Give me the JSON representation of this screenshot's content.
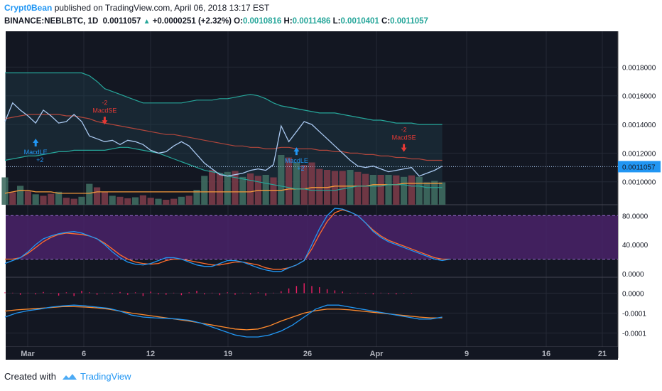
{
  "header": {
    "author": "Crypt0Bean",
    "published": "published on TradingView.com, April 06, 2018 13:17 EST",
    "symbol": "BINANCE:NEBLBTC, 1D",
    "last": "0.0011057",
    "change": "+0.0000251 (+2.32%)",
    "o_label": "O:",
    "o_value": "0.0010816",
    "h_label": "H:",
    "h_value": "0.0011486",
    "l_label": "L:",
    "l_value": "0.0010401",
    "c_label": "C:",
    "c_value": "0.0011057"
  },
  "footer": {
    "created_with": "Created with",
    "brand": "TradingView"
  },
  "colors": {
    "background": "#131722",
    "price_line": "#a9c8f0",
    "upper_band": "#26a69a",
    "lower_band": "#26a69a",
    "mid_band": "#b0463c",
    "ema": "#f59a3b",
    "vol_up": "#3f6b60",
    "vol_down": "#7a3b48",
    "stoch_k": "#2196f3",
    "stoch_d": "#ff6d2d",
    "macd_line": "#2196f3",
    "signal_line": "#ff8a2d",
    "hist": "#e91e63",
    "signal_long": "#2196f3",
    "signal_short": "#e53935",
    "rsi_band": "#4a2268"
  },
  "chart_data": [
    {
      "type": "line",
      "panel": "price",
      "x_ticks": [
        "Mar",
        "6",
        "12",
        "19",
        "26",
        "Apr",
        "9",
        "16",
        "21"
      ],
      "y_ticks": [
        "0.0018000",
        "0.0016000",
        "0.0014000",
        "0.0012000",
        "0.0010000"
      ],
      "ylim": [
        0.00084,
        0.00205
      ],
      "current_price_label": "0.0011057",
      "current_price": 0.0011057,
      "series": [
        {
          "values": [
            0.00142,
            0.00155,
            0.0015,
            0.00146,
            0.00141,
            0.0015,
            0.00146,
            0.00141,
            0.00142,
            0.00147,
            0.00142,
            0.00132,
            0.0013,
            0.00128,
            0.00129,
            0.00126,
            0.00129,
            0.00128,
            0.00126,
            0.00122,
            0.0012,
            0.00121,
            0.00125,
            0.00128,
            0.00125,
            0.00119,
            0.00113,
            0.00109,
            0.00105,
            0.00104,
            0.00105,
            0.00106,
            0.00108,
            0.00109,
            0.00108,
            0.00112,
            0.00139,
            0.00128,
            0.00135,
            0.00142,
            0.0014,
            0.00135,
            0.0013,
            0.00125,
            0.0012,
            0.00115,
            0.00111,
            0.0011,
            0.00111,
            0.00109,
            0.00107,
            0.00108,
            0.00109,
            0.0011,
            0.00104,
            0.00106,
            0.00108,
            0.00111
          ]
        },
        {
          "values": [
            0.00176,
            0.00176,
            0.00176,
            0.00176,
            0.00176,
            0.00176,
            0.00176,
            0.00176,
            0.00176,
            0.00176,
            0.00176,
            0.00174,
            0.0017,
            0.00165,
            0.00163,
            0.00161,
            0.00159,
            0.00157,
            0.00155,
            0.00155,
            0.00155,
            0.00155,
            0.00155,
            0.00155,
            0.00156,
            0.00157,
            0.00157,
            0.00157,
            0.00158,
            0.00158,
            0.00159,
            0.0016,
            0.00161,
            0.0016,
            0.00158,
            0.00155,
            0.00153,
            0.00152,
            0.00151,
            0.0015,
            0.00149,
            0.00148,
            0.00148,
            0.00148,
            0.00147,
            0.00146,
            0.00145,
            0.00144,
            0.00143,
            0.00143,
            0.00142,
            0.00141,
            0.00141,
            0.00141,
            0.0014,
            0.0014,
            0.0014,
            0.0014
          ]
        },
        {
          "values": [
            0.00144,
            0.00145,
            0.00146,
            0.00147,
            0.00147,
            0.00147,
            0.00147,
            0.00147,
            0.00146,
            0.00146,
            0.00145,
            0.00144,
            0.00142,
            0.00141,
            0.0014,
            0.00139,
            0.00138,
            0.00137,
            0.00136,
            0.00135,
            0.00134,
            0.00133,
            0.00133,
            0.00132,
            0.00131,
            0.0013,
            0.00129,
            0.00128,
            0.00127,
            0.00126,
            0.00125,
            0.00125,
            0.00124,
            0.00124,
            0.00123,
            0.00123,
            0.00124,
            0.00124,
            0.00123,
            0.00123,
            0.00123,
            0.00122,
            0.00122,
            0.00121,
            0.00121,
            0.0012,
            0.0012,
            0.00119,
            0.00119,
            0.00118,
            0.00118,
            0.00117,
            0.00117,
            0.00116,
            0.00116,
            0.00115,
            0.00115,
            0.00115
          ]
        },
        {
          "values": [
            0.00115,
            0.00116,
            0.00117,
            0.00118,
            0.00118,
            0.00119,
            0.0012,
            0.00121,
            0.00121,
            0.00122,
            0.00122,
            0.00122,
            0.00122,
            0.00122,
            0.00123,
            0.00124,
            0.00124,
            0.00123,
            0.00122,
            0.00121,
            0.0012,
            0.00118,
            0.00116,
            0.00114,
            0.00112,
            0.0011,
            0.00108,
            0.00107,
            0.00106,
            0.00104,
            0.00103,
            0.00102,
            0.00101,
            0.001,
            0.00099,
            0.00098,
            0.00097,
            0.00096,
            0.00095,
            0.00095,
            0.00094,
            0.00094,
            0.00094,
            0.00094,
            0.00095,
            0.00096,
            0.00097,
            0.00097,
            0.00097,
            0.00097,
            0.00098,
            0.00098,
            0.00098,
            0.00097,
            0.00097,
            0.00096,
            0.00096,
            0.00096
          ]
        },
        {
          "values": [
            0.00092,
            0.00093,
            0.00094,
            0.00094,
            0.00093,
            0.00093,
            0.00093,
            0.00092,
            0.00092,
            0.00092,
            0.00092,
            0.00092,
            0.00093,
            0.00093,
            0.00093,
            0.00093,
            0.00093,
            0.00093,
            0.00093,
            0.00093,
            0.00093,
            0.00093,
            0.00093,
            0.00093,
            0.00093,
            0.00093,
            0.00093,
            0.00093,
            0.00093,
            0.00093,
            0.00093,
            0.00093,
            0.00093,
            0.00094,
            0.00094,
            0.00094,
            0.00094,
            0.00095,
            0.00095,
            0.00095,
            0.00096,
            0.00096,
            0.00096,
            0.00097,
            0.00097,
            0.00097,
            0.00097,
            0.00097,
            0.00098,
            0.00098,
            0.00098,
            0.00098,
            0.00099,
            0.00099,
            0.00099,
            0.00099,
            0.00099,
            0.00099
          ]
        }
      ],
      "volume": [
        0.55,
        0.25,
        0.38,
        0.27,
        0.21,
        0.18,
        0.22,
        0.26,
        0.14,
        0.12,
        0.16,
        0.42,
        0.35,
        0.26,
        0.18,
        0.16,
        0.13,
        0.15,
        0.19,
        0.14,
        0.12,
        0.1,
        0.12,
        0.16,
        0.18,
        0.3,
        0.58,
        0.7,
        0.64,
        0.66,
        0.68,
        0.56,
        0.63,
        0.58,
        0.6,
        0.55,
        1.0,
        0.95,
        0.85,
        0.8,
        0.85,
        0.72,
        0.7,
        0.68,
        0.68,
        0.7,
        0.66,
        0.62,
        0.6,
        0.6,
        0.6,
        0.59,
        0.56,
        0.59,
        0.56,
        0.45,
        0.48,
        0.45
      ],
      "volume_up": [
        true,
        false,
        true,
        false,
        true,
        false,
        false,
        true,
        false,
        false,
        true,
        true,
        false,
        false,
        true,
        false,
        false,
        true,
        false,
        false,
        true,
        false,
        false,
        true,
        false,
        true,
        true,
        false,
        false,
        true,
        false,
        true,
        false,
        false,
        true,
        false,
        true,
        false,
        true,
        false,
        false,
        false,
        false,
        false,
        false,
        true,
        false,
        false,
        true,
        false,
        true,
        false,
        true,
        false,
        true,
        true,
        true,
        true
      ],
      "signals": [
        {
          "label": "MacdLE",
          "sub": "+2",
          "index": 4,
          "kind": "long"
        },
        {
          "label": "MacdSE",
          "sub": "-2",
          "index": 13,
          "kind": "short"
        },
        {
          "label": "MacdLE",
          "sub": "+2",
          "index": 38,
          "kind": "long"
        },
        {
          "label": "MacdSE",
          "sub": "-2",
          "index": 52,
          "kind": "short"
        }
      ]
    },
    {
      "type": "line",
      "panel": "stochastic_rsi",
      "y_ticks": [
        "80.0000",
        "40.0000",
        "0.0000"
      ],
      "ylim": [
        -5,
        95
      ],
      "series": [
        {
          "values": [
            14,
            18,
            22,
            30,
            40,
            48,
            52,
            55,
            57,
            58,
            56,
            52,
            48,
            40,
            30,
            22,
            16,
            13,
            12,
            14,
            18,
            22,
            22,
            20,
            16,
            12,
            10,
            10,
            14,
            18,
            18,
            16,
            12,
            8,
            5,
            3,
            3,
            8,
            12,
            18,
            40,
            62,
            80,
            90,
            89,
            85,
            80,
            70,
            58,
            50,
            44,
            40,
            36,
            32,
            28,
            24,
            20,
            18,
            20
          ]
        },
        {
          "values": [
            20,
            20,
            22,
            28,
            36,
            44,
            50,
            54,
            56,
            55,
            54,
            52,
            48,
            42,
            34,
            26,
            20,
            16,
            14,
            13,
            14,
            18,
            20,
            20,
            18,
            16,
            14,
            12,
            12,
            14,
            16,
            16,
            14,
            12,
            8,
            6,
            6,
            8,
            12,
            18,
            34,
            54,
            72,
            84,
            88,
            85,
            80,
            70,
            60,
            52,
            46,
            42,
            38,
            34,
            30,
            26,
            22,
            20,
            20
          ]
        }
      ]
    },
    {
      "type": "line",
      "panel": "macd",
      "y_ticks": [
        "0.0000",
        "-0.0001",
        "-0.0001"
      ],
      "ylim": [
        -0.000135,
        4e-05
      ],
      "histogram": [
        2e-06,
        1e-06,
        -4e-06,
        1e-06,
        -3e-06,
        3e-06,
        -1e-06,
        -6e-06,
        2e-06,
        -7e-06,
        6e-06,
        2e-06,
        -4e-06,
        1e-06,
        -2e-06,
        3e-06,
        -4e-06,
        2e-06,
        -7e-06,
        4e-06,
        -3e-06,
        -4e-06,
        1e-06,
        -5e-06,
        2e-06,
        6e-06,
        -3e-06,
        1e-06,
        -5e-06,
        2e-06,
        -4e-06,
        1e-06,
        -3e-06,
        2e-06,
        -6e-06,
        1e-06,
        5e-06,
        1.2e-05,
        1.8e-05,
        2.5e-05,
        1.8e-05,
        1.5e-05,
        1e-05,
        7e-06,
        4e-06,
        -1e-06,
        1e-06,
        -1e-06,
        -3e-06,
        1e-06,
        -2e-06,
        -3e-06,
        -1e-06,
        -1e-06
      ],
      "series": [
        {
          "values": [
            -6e-05,
            -5e-05,
            -4.4e-05,
            -4e-05,
            -3.5e-05,
            -3.2e-05,
            -3e-05,
            -3.2e-05,
            -3.5e-05,
            -3.8e-05,
            -4.5e-05,
            -5.5e-05,
            -6e-05,
            -6.2e-05,
            -6.3e-05,
            -6.5e-05,
            -6.8e-05,
            -7.5e-05,
            -8.5e-05,
            -9.5e-05,
            -0.000105,
            -0.00011,
            -0.00011,
            -0.000105,
            -9.5e-05,
            -8e-05,
            -6e-05,
            -4e-05,
            -3e-05,
            -3e-05,
            -3.5e-05,
            -4e-05,
            -4.5e-05,
            -5e-05,
            -5.5e-05,
            -6e-05,
            -6.5e-05,
            -6.5e-05,
            -6e-05
          ]
        },
        {
          "values": [
            -4.5e-05,
            -4.2e-05,
            -4e-05,
            -3.8e-05,
            -3.6e-05,
            -3.4e-05,
            -3.4e-05,
            -3.5e-05,
            -3.7e-05,
            -4e-05,
            -4.5e-05,
            -5e-05,
            -5.4e-05,
            -5.8e-05,
            -6.2e-05,
            -6.6e-05,
            -7e-05,
            -7.5e-05,
            -8e-05,
            -8.5e-05,
            -9e-05,
            -9.2e-05,
            -9e-05,
            -8.2e-05,
            -7e-05,
            -6e-05,
            -5e-05,
            -4.4e-05,
            -4e-05,
            -4e-05,
            -4.2e-05,
            -4.5e-05,
            -4.8e-05,
            -5.1e-05,
            -5.4e-05,
            -5.7e-05,
            -6e-05,
            -6.2e-05,
            -6.2e-05
          ]
        }
      ]
    }
  ]
}
